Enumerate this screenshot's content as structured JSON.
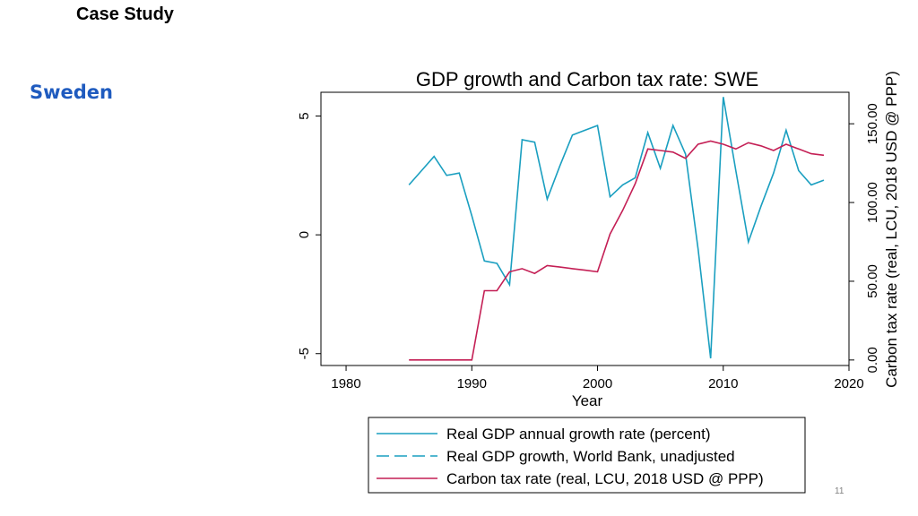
{
  "slide": {
    "header": "Case Study",
    "subtitle": "Sweden",
    "page_number": "11"
  },
  "colors": {
    "gdp_line": "#1a9fc0",
    "tax_line": "#c41f55",
    "subtitle": "#1f5bbf"
  },
  "chart_data": {
    "type": "line",
    "title": "GDP growth and Carbon tax rate: SWE",
    "xlabel": "Year",
    "ylabel_left": "",
    "ylabel_right": "Carbon tax rate (real, LCU, 2018 USD @ PPP)",
    "xlim": [
      1978,
      2020
    ],
    "ylim_left": [
      -5.5,
      6.0
    ],
    "ylim_right": [
      -3.5,
      170
    ],
    "x_ticks": [
      "1980",
      "1990",
      "2000",
      "2010",
      "2020"
    ],
    "y_left_ticks": [
      "-5",
      "0",
      "5"
    ],
    "y_right_ticks": [
      "0.00",
      "50.00",
      "100.00",
      "150.00"
    ],
    "series": [
      {
        "name": "Real GDP annual growth rate (percent)",
        "axis": "left",
        "style": "solid",
        "x": [
          1985,
          1986,
          1987,
          1988,
          1989,
          1990,
          1991,
          1992,
          1993,
          1994,
          1995,
          1996,
          1997,
          1998,
          1999,
          2000,
          2001,
          2002,
          2003,
          2004,
          2005,
          2006,
          2007,
          2008,
          2009,
          2010,
          2011,
          2012,
          2013,
          2014,
          2015,
          2016,
          2017,
          2018
        ],
        "values": [
          2.1,
          2.7,
          3.3,
          2.5,
          2.6,
          0.8,
          -1.1,
          -1.2,
          -2.1,
          4.0,
          3.9,
          1.5,
          2.9,
          4.2,
          4.4,
          4.6,
          1.6,
          2.1,
          2.4,
          4.3,
          2.8,
          4.6,
          3.4,
          -0.6,
          -5.2,
          5.8,
          2.7,
          -0.3,
          1.2,
          2.6,
          4.4,
          2.7,
          2.1,
          2.3
        ]
      },
      {
        "name": "Real GDP growth, World Bank, unadjusted",
        "axis": "left",
        "style": "dashed",
        "x": [],
        "values": []
      },
      {
        "name": "Carbon tax rate (real, LCU, 2018 USD @ PPP)",
        "axis": "right",
        "style": "solid",
        "x": [
          1985,
          1986,
          1987,
          1988,
          1989,
          1990,
          1991,
          1992,
          1993,
          1994,
          1995,
          1996,
          1997,
          1998,
          1999,
          2000,
          2001,
          2002,
          2003,
          2004,
          2005,
          2006,
          2007,
          2008,
          2009,
          2010,
          2011,
          2012,
          2013,
          2014,
          2015,
          2016,
          2017,
          2018
        ],
        "values": [
          0,
          0,
          0,
          0,
          0,
          0,
          44,
          44,
          56,
          58,
          55,
          60,
          59,
          58,
          57,
          56,
          80,
          95,
          112,
          134,
          133,
          132,
          128,
          137,
          139,
          137,
          134,
          138,
          136,
          133,
          137,
          134,
          131,
          130
        ]
      }
    ]
  }
}
